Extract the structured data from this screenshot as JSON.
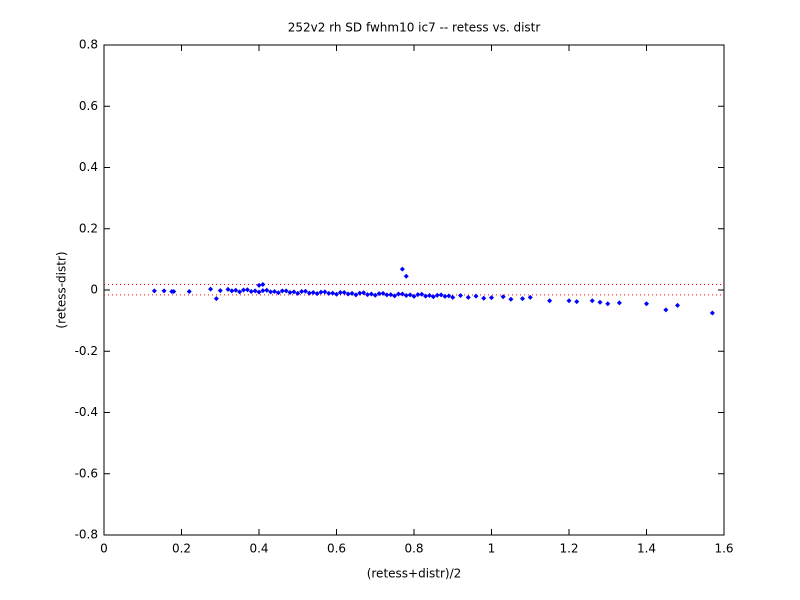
{
  "chart_data": {
    "type": "scatter",
    "title": "252v2 rh SD fwhm10 ic7 -- retess vs. distr",
    "xlabel": "(retess+distr)/2",
    "ylabel": "(retess-distr)",
    "xlim": [
      0,
      1.6
    ],
    "ylim": [
      -0.8,
      0.8
    ],
    "xticks": [
      0,
      0.2,
      0.4,
      0.6,
      0.8,
      1,
      1.2,
      1.4,
      1.6
    ],
    "yticks": [
      -0.8,
      -0.6,
      -0.4,
      -0.2,
      0,
      0.2,
      0.4,
      0.6,
      0.8
    ],
    "grid": false,
    "color": "#0000ff",
    "hlines": [
      0.018,
      -0.016
    ],
    "hline_color": "#ff0000",
    "x": [
      0.13,
      0.155,
      0.175,
      0.18,
      0.22,
      0.275,
      0.29,
      0.3,
      0.4,
      0.41,
      0.32,
      0.33,
      0.34,
      0.35,
      0.36,
      0.37,
      0.38,
      0.39,
      0.4,
      0.41,
      0.42,
      0.43,
      0.44,
      0.45,
      0.46,
      0.47,
      0.48,
      0.49,
      0.5,
      0.51,
      0.52,
      0.53,
      0.54,
      0.55,
      0.56,
      0.57,
      0.58,
      0.59,
      0.6,
      0.61,
      0.62,
      0.63,
      0.64,
      0.65,
      0.66,
      0.67,
      0.68,
      0.69,
      0.7,
      0.71,
      0.72,
      0.73,
      0.74,
      0.75,
      0.76,
      0.77,
      0.78,
      0.79,
      0.8,
      0.81,
      0.82,
      0.83,
      0.84,
      0.85,
      0.86,
      0.87,
      0.88,
      0.89,
      0.9,
      0.92,
      0.94,
      0.96,
      0.98,
      1.0,
      1.03,
      1.05,
      1.08,
      1.1,
      0.77,
      0.78,
      1.15,
      1.2,
      1.22,
      1.26,
      1.28,
      1.3,
      1.33,
      1.4,
      1.45,
      1.48,
      1.57
    ],
    "y": [
      -0.003,
      -0.003,
      -0.005,
      -0.005,
      -0.005,
      0.003,
      -0.028,
      -0.002,
      0.015,
      0.018,
      0.002,
      -0.003,
      -0.001,
      -0.006,
      0,
      0.001,
      -0.005,
      -0.003,
      -0.007,
      -0.002,
      -0.001,
      -0.006,
      -0.005,
      -0.009,
      -0.003,
      -0.003,
      -0.008,
      -0.006,
      -0.011,
      -0.005,
      -0.004,
      -0.01,
      -0.008,
      -0.012,
      -0.007,
      -0.006,
      -0.011,
      -0.01,
      -0.014,
      -0.008,
      -0.008,
      -0.013,
      -0.011,
      -0.016,
      -0.01,
      -0.009,
      -0.015,
      -0.013,
      -0.017,
      -0.012,
      -0.011,
      -0.016,
      -0.015,
      -0.019,
      -0.013,
      -0.013,
      -0.018,
      -0.016,
      -0.021,
      -0.015,
      -0.014,
      -0.02,
      -0.018,
      -0.022,
      -0.017,
      -0.016,
      -0.021,
      -0.019,
      -0.024,
      -0.018,
      -0.024,
      -0.02,
      -0.027,
      -0.025,
      -0.022,
      -0.03,
      -0.028,
      -0.024,
      0.068,
      0.045,
      -0.035,
      -0.035,
      -0.038,
      -0.035,
      -0.04,
      -0.045,
      -0.042,
      -0.045,
      -0.065,
      -0.05,
      -0.075
    ]
  }
}
